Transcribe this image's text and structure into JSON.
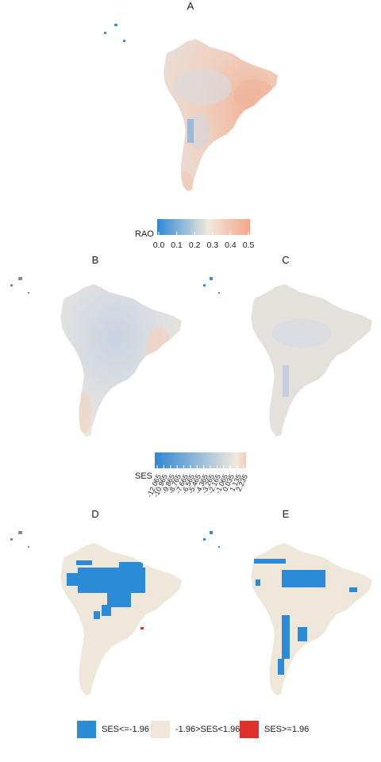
{
  "panels": {
    "A": {
      "title": "A"
    },
    "B": {
      "title": "B"
    },
    "C": {
      "title": "C"
    },
    "D": {
      "title": "D"
    },
    "E": {
      "title": "E"
    }
  },
  "rao_legend": {
    "title": "RAO",
    "min": 0.0,
    "max": 0.5,
    "ticks": [
      "0.0",
      "0.1",
      "0.2",
      "0.3",
      "0.4",
      "0.5"
    ],
    "colors": [
      "#2f87d4",
      "#f1e9dc",
      "#f4a58a"
    ]
  },
  "ses_legend": {
    "title": "SES",
    "ticks": [
      "-12.065",
      "-10.965",
      "-9.865",
      "-8.765",
      "-7.665",
      "-6.565",
      "-5.465",
      "-4.365",
      "-3.265",
      "-2.165",
      "-1.065",
      "0.035",
      "1.135",
      "2.235"
    ],
    "colors": [
      "#2f87d4",
      "#f1e9dc",
      "#f4c9b3"
    ]
  },
  "category_legend": {
    "items": [
      {
        "label": "SES<=-1.96",
        "color": "#2b8bd6"
      },
      {
        "label": "-1.96>SES<1.96",
        "color": "#efe8da"
      },
      {
        "label": "SES>=1.96",
        "color": "#e0302b"
      }
    ]
  }
}
